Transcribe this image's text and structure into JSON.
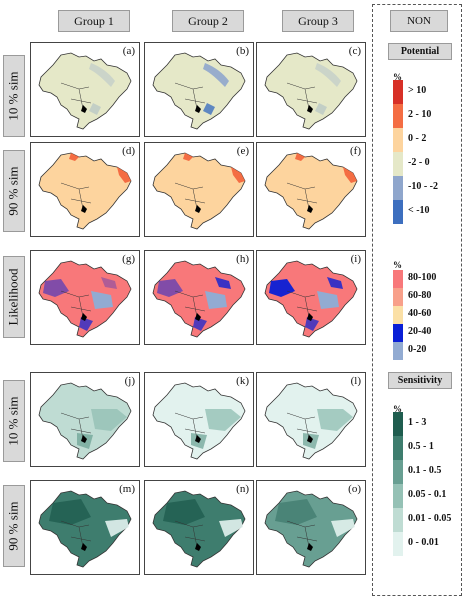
{
  "columns": [
    {
      "label": "Group 1"
    },
    {
      "label": "Group 2"
    },
    {
      "label": "Group 3"
    }
  ],
  "non_label": "NON",
  "rows": [
    {
      "label": "10 % sim"
    },
    {
      "label": "90 % sim"
    },
    {
      "label": "Likelihood"
    },
    {
      "label": "10 % sim"
    },
    {
      "label": "90 % sim"
    }
  ],
  "panels": [
    "(a)",
    "(b)",
    "(c)",
    "(d)",
    "(e)",
    "(f)",
    "(g)",
    "(h)",
    "(i)",
    "(j)",
    "(k)",
    "(l)",
    "(m)",
    "(n)",
    "(o)"
  ],
  "legends": {
    "potential": {
      "title": "Potential",
      "unit": "%",
      "classes": [
        {
          "label": "> 10",
          "color": "#d73027"
        },
        {
          "label": "2 - 10",
          "color": "#f46d43"
        },
        {
          "label": "0 - 2",
          "color": "#fdd49e"
        },
        {
          "label": "-2 - 0",
          "color": "#e5e8c8"
        },
        {
          "label": "-10 - -2",
          "color": "#8fa6cc"
        },
        {
          "label": "< -10",
          "color": "#3d6fbf"
        }
      ]
    },
    "likelihood": {
      "unit": "%",
      "classes": [
        {
          "label": "80-100",
          "color": "#f8787a"
        },
        {
          "label": "60-80",
          "color": "#f8a08a"
        },
        {
          "label": "40-60",
          "color": "#fbe0a6"
        },
        {
          "label": "20-40",
          "color": "#0a1fd6"
        },
        {
          "label": "0-20",
          "color": "#92abd2"
        }
      ]
    },
    "sensitivity": {
      "title": "Sensitivity",
      "unit": "%",
      "classes": [
        {
          "label": "1 - 3",
          "color": "#1f5d4f"
        },
        {
          "label": "0.5 - 1",
          "color": "#3e7d6e"
        },
        {
          "label": "0.1 - 0.5",
          "color": "#689f92"
        },
        {
          "label": "0.05 - 0.1",
          "color": "#95c1b5"
        },
        {
          "label": "0.01 - 0.05",
          "color": "#bfdcd3"
        },
        {
          "label": "0 - 0.01",
          "color": "#e2f2ee"
        }
      ]
    }
  },
  "map_fills": {
    "row_a": [
      "#e5e8c8",
      "#e5e8c8",
      "#e5e8c8"
    ],
    "row_b": [
      "#fdd49e",
      "#fdd49e",
      "#fdd49e"
    ],
    "row_c": [
      "#f8787a",
      "#f8787a",
      "#f8787a"
    ],
    "row_d": [
      "#bfdcd3",
      "#e2f2ee",
      "#e2f2ee"
    ],
    "row_e": [
      "#3e7d6e",
      "#3e7d6e",
      "#689f92"
    ]
  }
}
